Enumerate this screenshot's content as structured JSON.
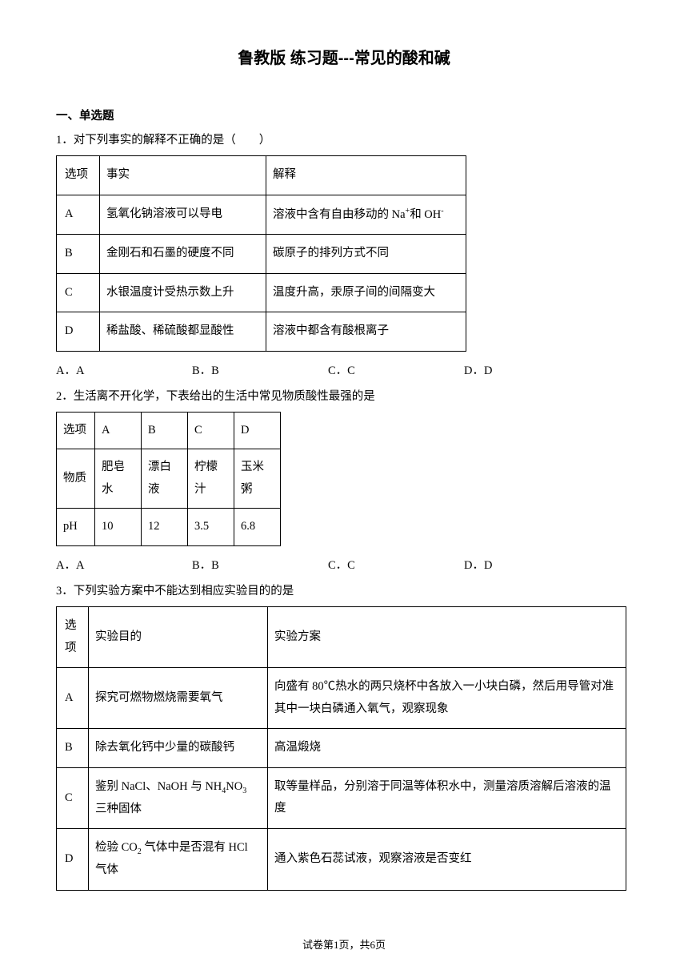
{
  "title": "鲁教版 练习题---常见的酸和碱",
  "section1": "一、单选题",
  "q1": {
    "stem": "1．对下列事实的解释不正确的是（　　）",
    "headers": [
      "选项",
      "事实",
      "解释"
    ],
    "rows": [
      [
        "A",
        "氢氧化钠溶液可以导电",
        "溶液中含有自由移动的 Na⁺和 OH⁻"
      ],
      [
        "B",
        "金刚石和石墨的硬度不同",
        "碳原子的排列方式不同"
      ],
      [
        "C",
        "水银温度计受热示数上升",
        "温度升高，汞原子间的间隔变大"
      ],
      [
        "D",
        "稀盐酸、稀硫酸都显酸性",
        "溶液中都含有酸根离子"
      ]
    ],
    "opts": {
      "a": "A．A",
      "b": "B．B",
      "c": "C．C",
      "d": "D．D"
    }
  },
  "q2": {
    "stem": "2．生活离不开化学，下表给出的生活中常见物质酸性最强的是",
    "rows": [
      [
        "选项",
        "A",
        "B",
        "C",
        "D"
      ],
      [
        "物质",
        "肥皂水",
        "漂白液",
        "柠檬汁",
        "玉米粥"
      ],
      [
        "pH",
        "10",
        "12",
        "3.5",
        "6.8"
      ]
    ],
    "opts": {
      "a": "A．A",
      "b": "B．B",
      "c": "C．C",
      "d": "D．D"
    }
  },
  "q3": {
    "stem": "3．下列实验方案中不能达到相应实验目的的是",
    "headers": [
      "选项",
      "实验目的",
      "实验方案"
    ],
    "rows": [
      [
        "A",
        "探究可燃物燃烧需要氧气",
        "向盛有 80℃热水的两只烧杯中各放入一小块白磷，然后用导管对准其中一块白磷通入氧气，观察现象"
      ],
      [
        "B",
        "除去氧化钙中少量的碳酸钙",
        "高温煅烧"
      ],
      [
        "C",
        "鉴别 NaCl、NaOH 与 NH₄NO₃三种固体",
        "取等量样品，分别溶于同温等体积水中，测量溶质溶解后溶液的温度"
      ],
      [
        "D",
        "检验 CO₂ 气体中是否混有 HCl气体",
        "通入紫色石蕊试液，观察溶液是否变红"
      ]
    ],
    "r0c0": "选项"
  },
  "footer": "试卷第1页，共6页"
}
